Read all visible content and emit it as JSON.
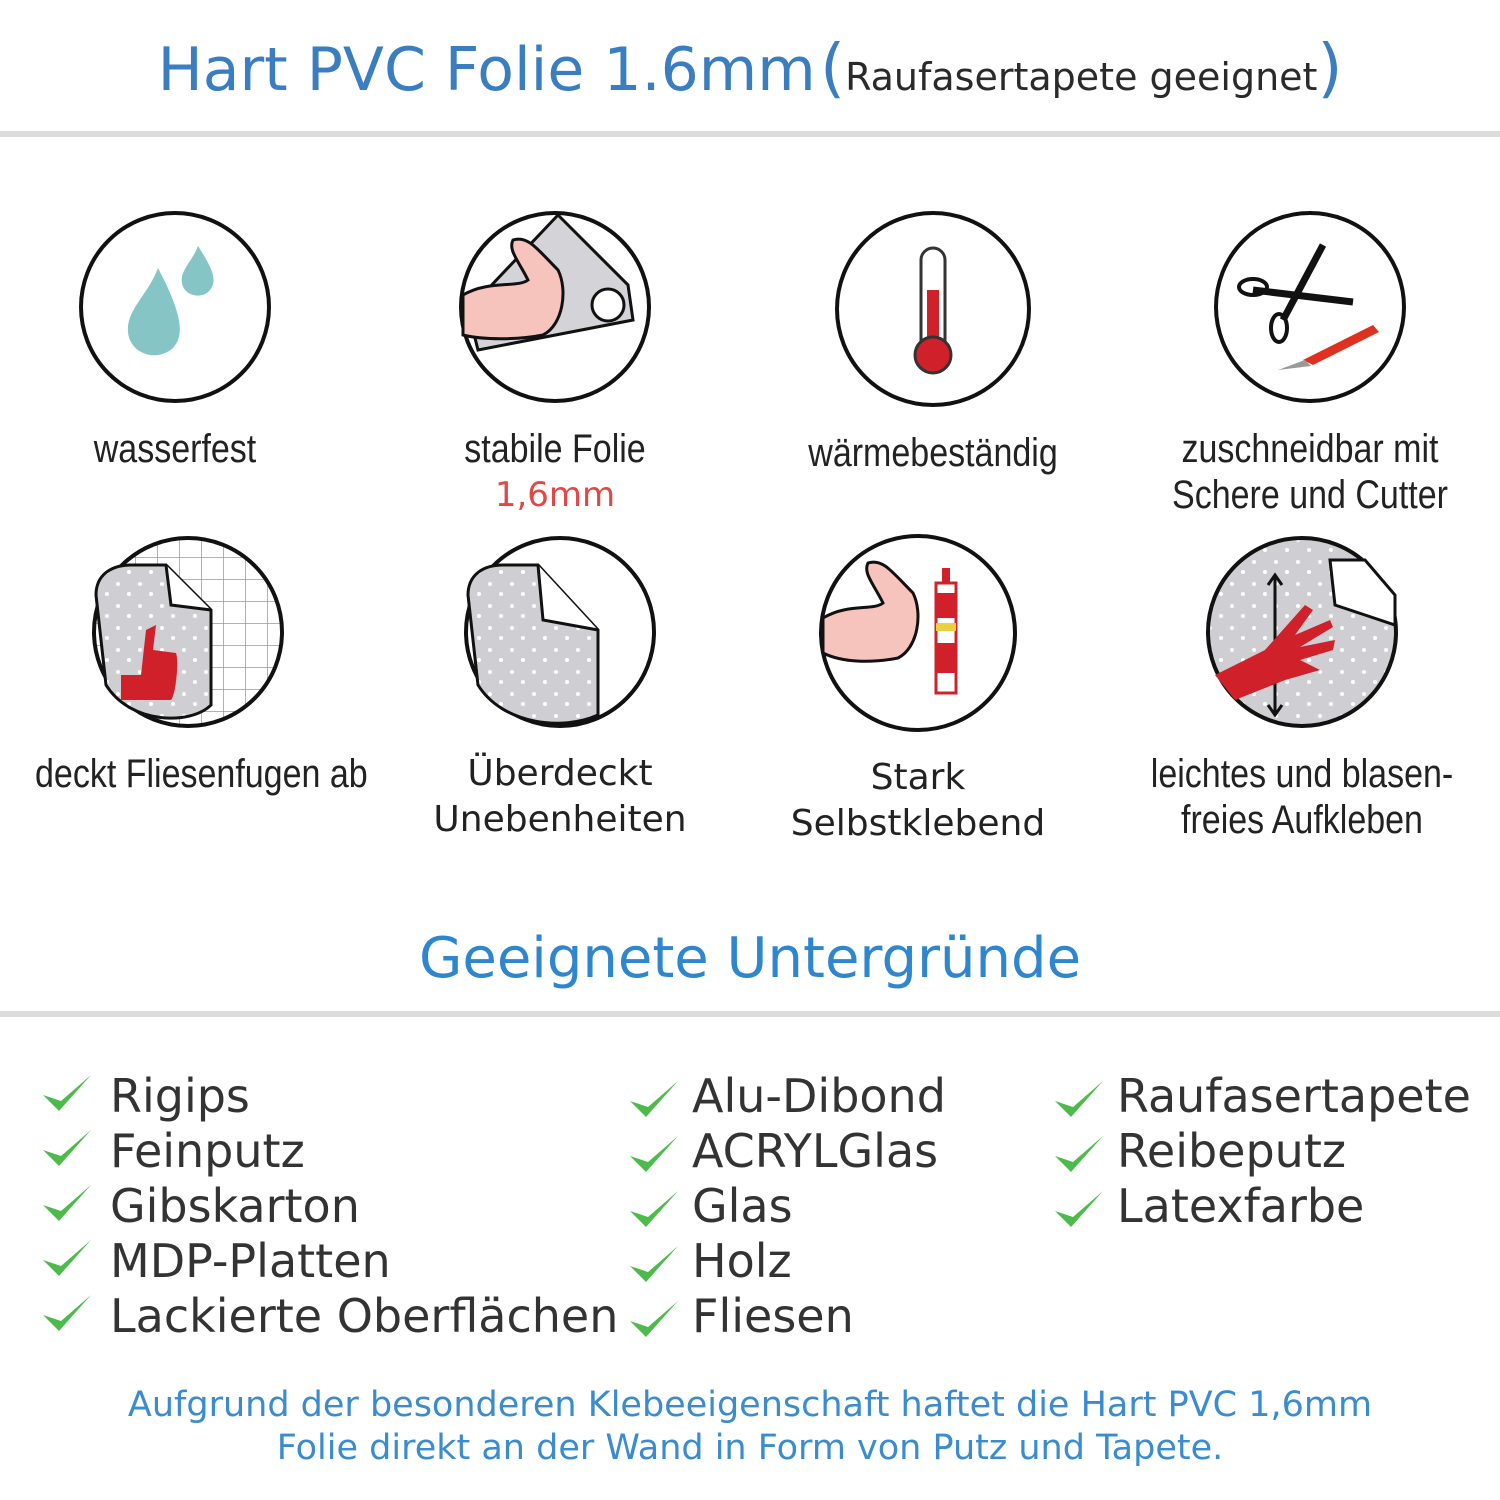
{
  "header": {
    "title": "Hart PVC Folie 1.6mm",
    "subtitle": "Raufasertapete geeignet",
    "open_paren": "(",
    "close_paren": ")"
  },
  "features": [
    {
      "icon": "water-drops-icon",
      "label": "wasserfest"
    },
    {
      "icon": "strong-arm-film-icon",
      "label": "stabile Folie",
      "sublabel": "1,6mm"
    },
    {
      "icon": "thermometer-icon",
      "label": "wärmebeständig"
    },
    {
      "icon": "scissors-cutter-icon",
      "label": "zuschneidbar mit",
      "label2": "Schere und Cutter"
    },
    {
      "icon": "thumbs-up-tiles-icon",
      "label": "deckt Fliesenfugen ab"
    },
    {
      "icon": "film-peel-icon",
      "label": "Überdeckt",
      "label2": "Unebenheiten"
    },
    {
      "icon": "strong-arm-glue-icon",
      "label": "Stark",
      "label2": "Selbstklebend"
    },
    {
      "icon": "hand-smooth-icon",
      "label": "leichtes und blasen-",
      "label2": "freies Aufkleben"
    }
  ],
  "surfaces": {
    "title": "Geeignete Untergründe",
    "columns": [
      [
        "Rigips",
        "Feinputz",
        "Gibskarton",
        "MDP-Platten",
        "Lackierte Oberflächen"
      ],
      [
        "Alu-Dibond",
        "ACRYLGlas",
        "Glas",
        "Holz",
        "Fliesen"
      ],
      [
        "Raufasertapete",
        "Reibeputz",
        "Latexfarbe"
      ]
    ]
  },
  "footer": {
    "line1": "Aufgrund der besonderen Klebeeigenschaft haftet die Hart PVC 1,6mm",
    "line2": "Folie direkt an der Wand in Form von Putz und Tapete."
  },
  "colors": {
    "blue": "#3a7dc0",
    "check": "#4cbb4c",
    "red": "#d0202a",
    "accent_red": "#e04848"
  }
}
